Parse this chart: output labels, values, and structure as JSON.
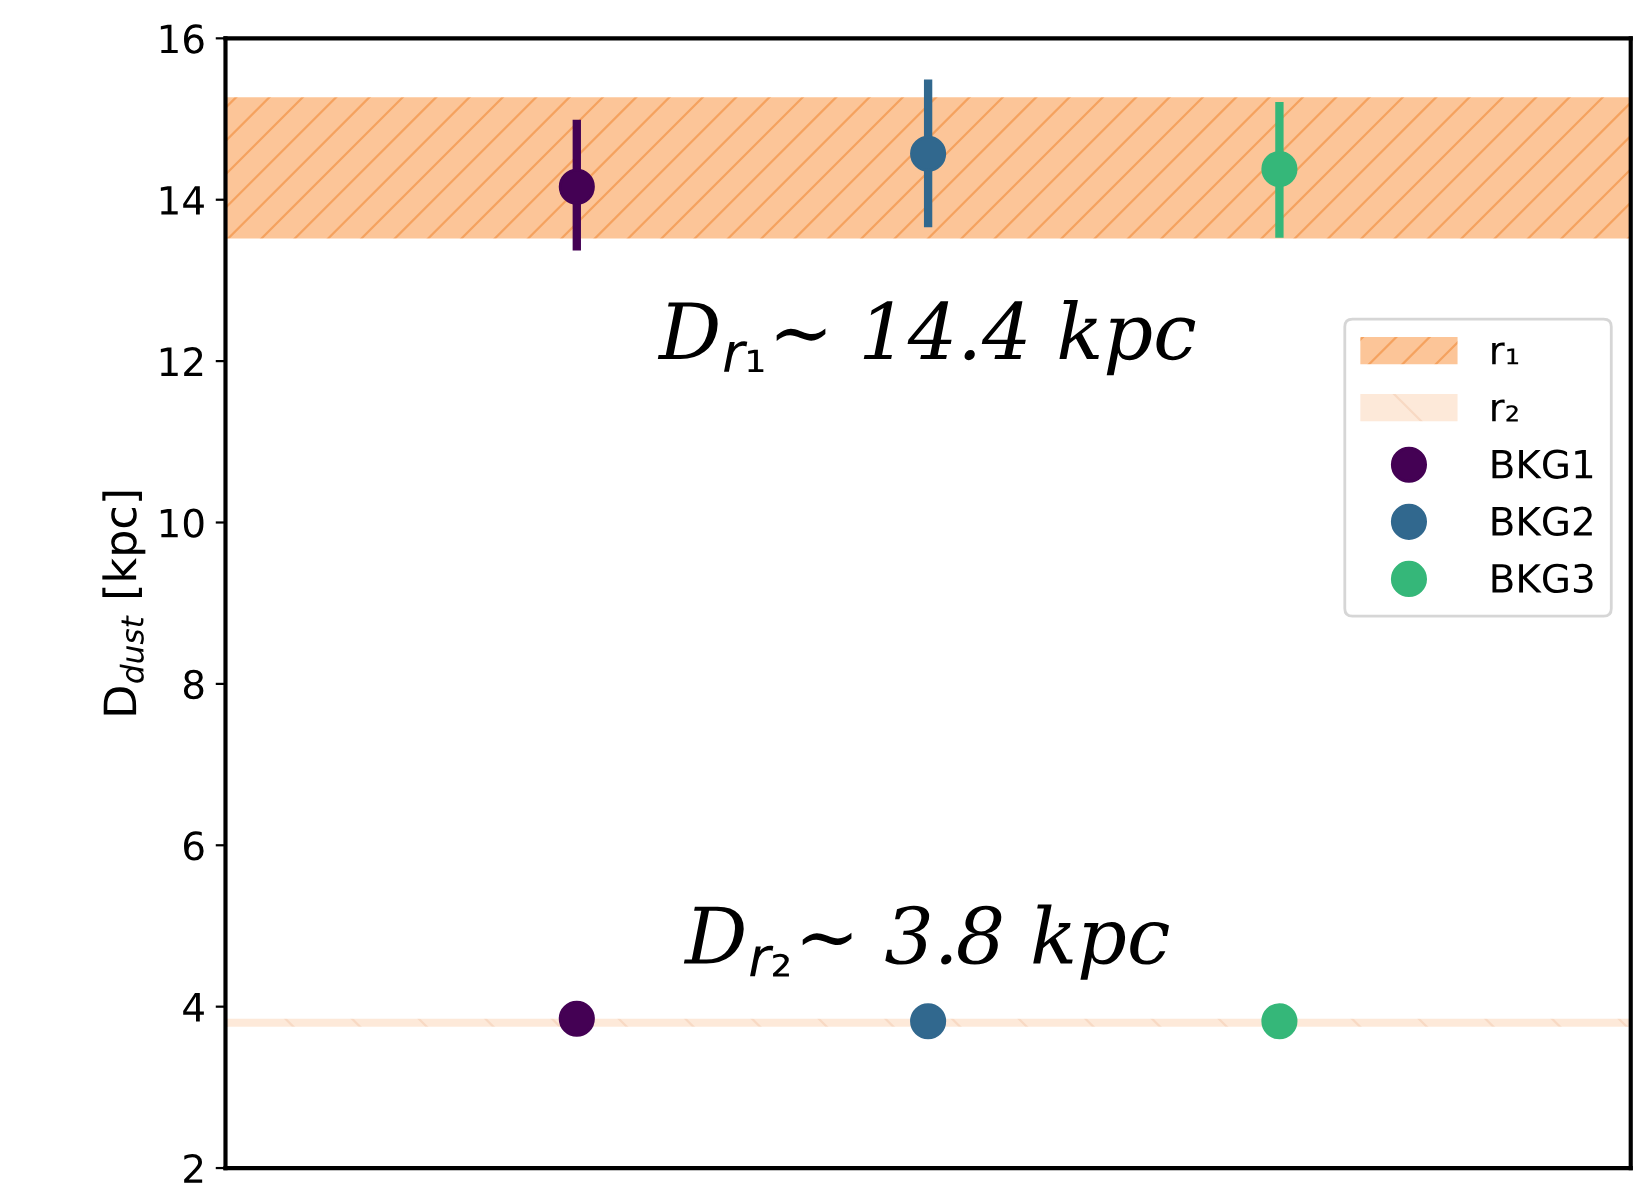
{
  "chart_data": {
    "type": "scatter",
    "ylabel": "D$_{dust}$ [kpc]",
    "categories": [
      null,
      null,
      null
    ],
    "ylim": [
      2,
      16
    ],
    "yticks": [
      2,
      4,
      6,
      8,
      10,
      12,
      14,
      16
    ],
    "tick_labels": "y",
    "grid": false,
    "marker": "circle",
    "legend": "right",
    "bands": [
      {
        "axis": "y",
        "from": 13.52,
        "to": 15.27,
        "label": "r₁",
        "color": "#fcc598"
      },
      {
        "axis": "y",
        "from": 3.75,
        "to": 3.85,
        "label": "r₂",
        "color": "#fde9d9"
      }
    ],
    "series": [
      {
        "name": "BKG1",
        "color": "#440154",
        "values": [
          14.16,
          null,
          null
        ],
        "errors": [
          [
            13.37,
            14.99
          ],
          null,
          null
        ]
      },
      {
        "name": "BKG2",
        "color": "#31688e",
        "values": [
          null,
          14.57,
          null
        ],
        "errors": [
          null,
          [
            13.66,
            15.49
          ],
          null
        ]
      },
      {
        "name": "BKG3",
        "color": "#35b779",
        "values": [
          null,
          null,
          14.38
        ],
        "errors": [
          null,
          null,
          [
            13.53,
            15.21
          ]
        ]
      },
      {
        "color": "#440154",
        "values": [
          3.85,
          null,
          null
        ]
      },
      {
        "color": "#31688e",
        "values": [
          null,
          3.82,
          null
        ]
      },
      {
        "color": "#35b779",
        "values": [
          null,
          null,
          3.82
        ]
      }
    ],
    "annotations": [
      "D$_{r₁}$∼ 14.4 kpc",
      "D$_{r₂}$∼ 3.8 kpc"
    ]
  }
}
